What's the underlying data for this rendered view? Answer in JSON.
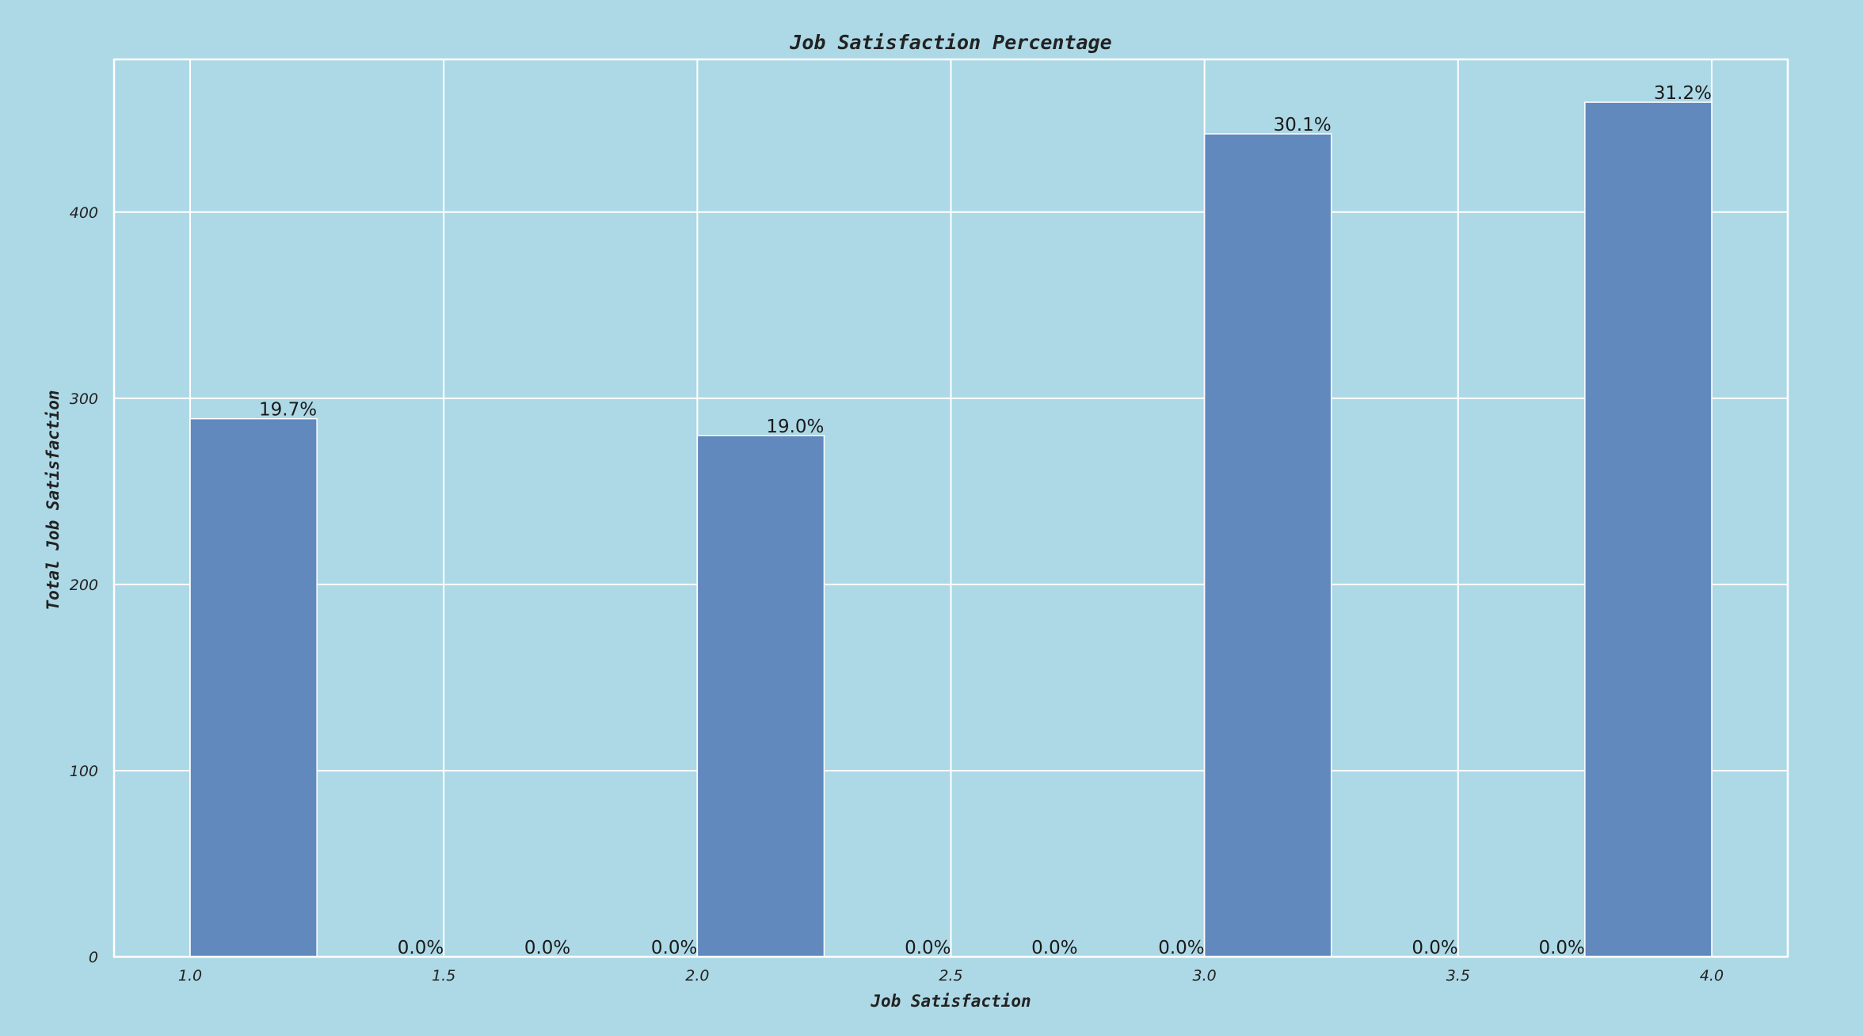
{
  "chart_data": {
    "type": "bar",
    "title": "Job Satisfaction Percentage",
    "xlabel": "Job Satisfaction",
    "ylabel": "Total Job Satisfaction",
    "xlim": [
      0.85,
      4.15
    ],
    "ylim": [
      0,
      482
    ],
    "grid": true,
    "bar_width": 0.25,
    "x_ticks": [
      1.0,
      1.5,
      2.0,
      2.5,
      3.0,
      3.5,
      4.0
    ],
    "x_tick_labels": [
      "1.0",
      "1.5",
      "2.0",
      "2.5",
      "3.0",
      "3.5",
      "4.0"
    ],
    "y_ticks": [
      0,
      100,
      200,
      300,
      400
    ],
    "y_tick_labels": [
      "0",
      "100",
      "200",
      "300",
      "400"
    ],
    "bins": [
      {
        "x": 1.0,
        "value": 289,
        "label": "19.7%"
      },
      {
        "x": 1.25,
        "value": 0,
        "label": "0.0%"
      },
      {
        "x": 1.5,
        "value": 0,
        "label": "0.0%"
      },
      {
        "x": 1.75,
        "value": 0,
        "label": "0.0%"
      },
      {
        "x": 2.0,
        "value": 280,
        "label": "19.0%"
      },
      {
        "x": 2.25,
        "value": 0,
        "label": "0.0%"
      },
      {
        "x": 2.5,
        "value": 0,
        "label": "0.0%"
      },
      {
        "x": 2.75,
        "value": 0,
        "label": "0.0%"
      },
      {
        "x": 3.0,
        "value": 442,
        "label": "30.1%"
      },
      {
        "x": 3.25,
        "value": 0,
        "label": "0.0%"
      },
      {
        "x": 3.5,
        "value": 0,
        "label": "0.0%"
      },
      {
        "x": 3.75,
        "value": 459,
        "label": "31.2%"
      }
    ],
    "colors": {
      "background": "#add8e6",
      "bar": "#6189bd",
      "grid": "#ffffff",
      "text": "#222222"
    }
  }
}
